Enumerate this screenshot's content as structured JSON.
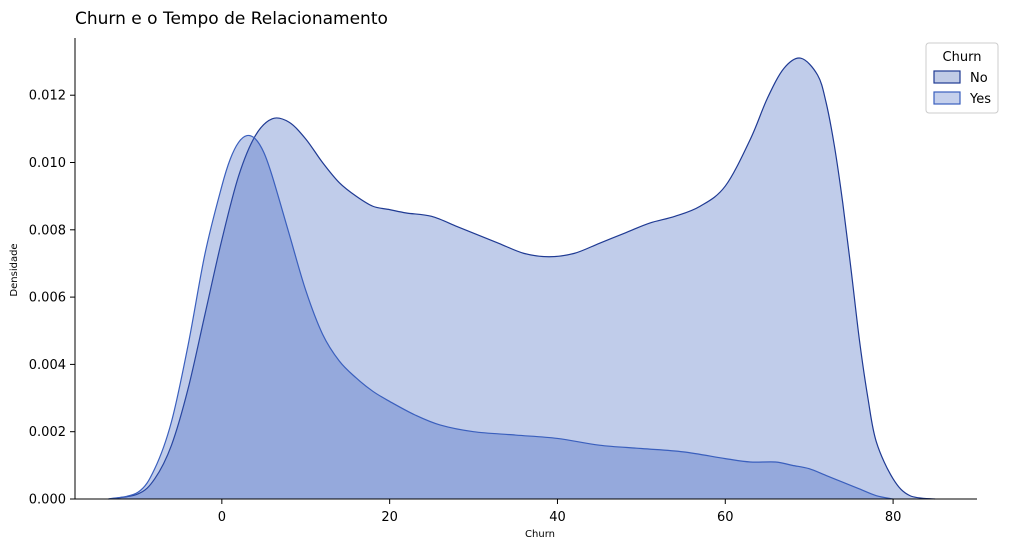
{
  "chart_data": {
    "type": "area",
    "title": "Churn e o Tempo de Relacionamento",
    "xlabel": "Churn",
    "ylabel": "Densidade",
    "xlim": [
      -17.5,
      90
    ],
    "ylim": [
      0,
      0.0137
    ],
    "xticks": [
      "0",
      "20",
      "40",
      "60",
      "80"
    ],
    "yticks": [
      "0.000",
      "0.002",
      "0.004",
      "0.006",
      "0.008",
      "0.010",
      "0.012"
    ],
    "grid": false,
    "legend": {
      "title": "Churn",
      "position": "top-right"
    },
    "series": [
      {
        "name": "No",
        "color": "#1f3a93",
        "fill": "#c0cbe6",
        "x": [
          -13.5,
          -10,
          -8,
          -6,
          -4,
          -2,
          0,
          2,
          4,
          6,
          8,
          10,
          12,
          14,
          16,
          18,
          20,
          22,
          25,
          28,
          30,
          33,
          36,
          39,
          42,
          45,
          48,
          51,
          54,
          57,
          60,
          63,
          65,
          67,
          69,
          71,
          72,
          73,
          74,
          75,
          76,
          77,
          78,
          80,
          82,
          85
        ],
        "y": [
          0.0,
          0.00015,
          0.0006,
          0.0016,
          0.0033,
          0.0055,
          0.0077,
          0.0096,
          0.0108,
          0.0113,
          0.0112,
          0.0107,
          0.01,
          0.0094,
          0.009,
          0.0087,
          0.0086,
          0.0085,
          0.0084,
          0.0081,
          0.0079,
          0.0076,
          0.0073,
          0.0072,
          0.0073,
          0.0076,
          0.0079,
          0.0082,
          0.0084,
          0.0087,
          0.0093,
          0.0107,
          0.0119,
          0.0128,
          0.0131,
          0.0126,
          0.0118,
          0.0105,
          0.0088,
          0.0068,
          0.0047,
          0.003,
          0.0017,
          0.0006,
          0.0001,
          0.0
        ]
      },
      {
        "name": "Yes",
        "color": "#3a5fbd",
        "fill": "#c5d0ec",
        "x": [
          -13.5,
          -10,
          -8,
          -6,
          -4,
          -2,
          0,
          1,
          2,
          3,
          4,
          5,
          6,
          8,
          10,
          12,
          14,
          16,
          18,
          20,
          23,
          26,
          30,
          35,
          40,
          45,
          50,
          55,
          60,
          63,
          66,
          68,
          70,
          72,
          74,
          76,
          78,
          80
        ],
        "y": [
          0.0,
          0.0002,
          0.0009,
          0.0023,
          0.0046,
          0.0073,
          0.0093,
          0.0101,
          0.0106,
          0.0108,
          0.0107,
          0.0103,
          0.0096,
          0.0079,
          0.0062,
          0.0049,
          0.0041,
          0.0036,
          0.0032,
          0.0029,
          0.0025,
          0.0022,
          0.002,
          0.0019,
          0.0018,
          0.0016,
          0.0015,
          0.0014,
          0.0012,
          0.0011,
          0.0011,
          0.001,
          0.0009,
          0.0007,
          0.0005,
          0.0003,
          0.0001,
          0.0
        ]
      }
    ]
  }
}
